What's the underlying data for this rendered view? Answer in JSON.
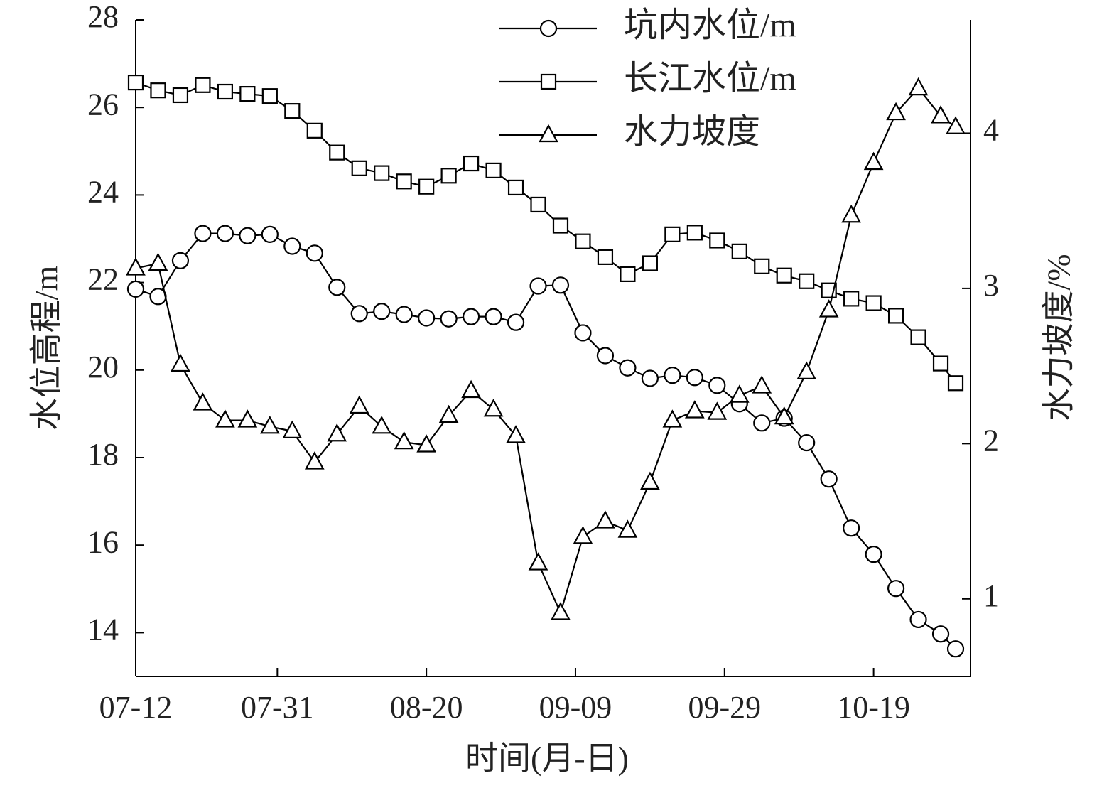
{
  "chart_data": {
    "type": "line",
    "xlabel": "时间(月-日)",
    "ylabel": "水位高程/m",
    "y2label": "水力坡度/%",
    "x": [
      "07-12",
      "07-15",
      "07-18",
      "07-21",
      "07-24",
      "07-27",
      "07-30",
      "08-02",
      "08-05",
      "08-08",
      "08-11",
      "08-14",
      "08-17",
      "08-20",
      "08-23",
      "08-26",
      "08-29",
      "09-01",
      "09-04",
      "09-07",
      "09-10",
      "09-13",
      "09-16",
      "09-19",
      "09-22",
      "09-25",
      "09-28",
      "10-01",
      "10-04",
      "10-07",
      "10-10",
      "10-13",
      "10-16",
      "10-19",
      "10-22",
      "10-25",
      "10-28",
      "10-30"
    ],
    "xlim": [
      "07-12",
      "11-01"
    ],
    "xticks": [
      "07-12",
      "07-31",
      "08-20",
      "09-09",
      "09-29",
      "10-19"
    ],
    "ylim": [
      13,
      28
    ],
    "yticks": [
      14,
      16,
      18,
      20,
      22,
      24,
      26,
      28
    ],
    "y2lim": [
      0.5,
      4.73
    ],
    "y2ticks": [
      1,
      2,
      3,
      4
    ],
    "series": [
      {
        "name": "坑内水位/m",
        "color": "#000000",
        "marker": "circle",
        "values": [
          21.85,
          21.68,
          22.5,
          23.12,
          23.12,
          23.07,
          23.1,
          22.83,
          22.67,
          21.89,
          21.29,
          21.34,
          21.27,
          21.19,
          21.17,
          21.22,
          21.22,
          21.09,
          21.92,
          21.94,
          20.85,
          20.33,
          20.05,
          19.81,
          19.88,
          19.83,
          19.65,
          19.23,
          18.79,
          18.9,
          18.34,
          17.51,
          16.39,
          15.79,
          15.01,
          14.3,
          13.97,
          13.63
        ]
      },
      {
        "name": "长江水位/m",
        "color": "#000000",
        "marker": "square",
        "values": [
          26.57,
          26.39,
          26.28,
          26.51,
          26.36,
          26.31,
          26.26,
          25.92,
          25.47,
          24.97,
          24.61,
          24.5,
          24.31,
          24.19,
          24.44,
          24.72,
          24.56,
          24.17,
          23.78,
          23.3,
          22.94,
          22.58,
          22.19,
          22.44,
          23.1,
          23.14,
          22.96,
          22.71,
          22.37,
          22.16,
          22.03,
          21.82,
          21.63,
          21.53,
          21.24,
          20.75,
          20.15,
          19.7
        ]
      },
      {
        "name": "水力坡度",
        "color": "#000000",
        "marker": "triangle",
        "axis": "y2",
        "values": [
          3.13,
          3.16,
          2.51,
          2.26,
          2.15,
          2.15,
          2.11,
          2.08,
          1.88,
          2.06,
          2.24,
          2.11,
          2.01,
          1.99,
          2.18,
          2.34,
          2.22,
          2.05,
          1.23,
          0.91,
          1.4,
          1.5,
          1.44,
          1.75,
          2.15,
          2.21,
          2.2,
          2.31,
          2.37,
          2.17,
          2.46,
          2.86,
          3.47,
          3.81,
          4.13,
          4.29,
          4.11,
          4.04
        ]
      }
    ]
  }
}
